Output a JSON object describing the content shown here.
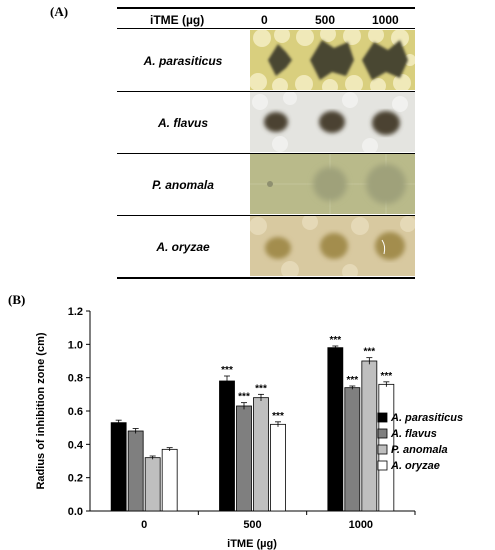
{
  "panel_a": {
    "label": "(A)",
    "header": {
      "col_label": "iTME (µg)",
      "doses": [
        "0",
        "500",
        "1000"
      ]
    },
    "rows": [
      {
        "organism": "A. parasiticus",
        "plate": "yellow"
      },
      {
        "organism": "A. flavus",
        "plate": "white"
      },
      {
        "organism": "P. anomala",
        "plate": "olive"
      },
      {
        "organism": "A. oryzae",
        "plate": "tan"
      }
    ]
  },
  "panel_b": {
    "label": "(B)"
  },
  "chart_data": {
    "type": "bar",
    "xlabel": "iTME (µg)",
    "ylabel": "Radius of inhibition zone (cm)",
    "categories": [
      "0",
      "500",
      "1000"
    ],
    "ylim": [
      0,
      1.2
    ],
    "yticks": [
      "0.0",
      "0.2",
      "0.4",
      "0.6",
      "0.8",
      "1.0",
      "1.2"
    ],
    "legend_position": "right",
    "series": [
      {
        "name": "A. parasiticus",
        "values": [
          0.53,
          0.78,
          0.98
        ],
        "errors": [
          0.015,
          0.03,
          0.01
        ],
        "significance": [
          "",
          "***",
          "***"
        ],
        "color": "#000000"
      },
      {
        "name": "A. flavus",
        "values": [
          0.48,
          0.63,
          0.74
        ],
        "errors": [
          0.015,
          0.02,
          0.01
        ],
        "significance": [
          "",
          "***",
          "***"
        ],
        "color": "#7f7f7f"
      },
      {
        "name": "P. anomala",
        "values": [
          0.32,
          0.68,
          0.9
        ],
        "errors": [
          0.01,
          0.02,
          0.02
        ],
        "significance": [
          "",
          "***",
          "***"
        ],
        "color": "#bfbfbf"
      },
      {
        "name": "A. oryzae",
        "values": [
          0.37,
          0.52,
          0.76
        ],
        "errors": [
          0.01,
          0.015,
          0.015
        ],
        "significance": [
          "",
          "***",
          "***"
        ],
        "color": "#ffffff"
      }
    ]
  }
}
